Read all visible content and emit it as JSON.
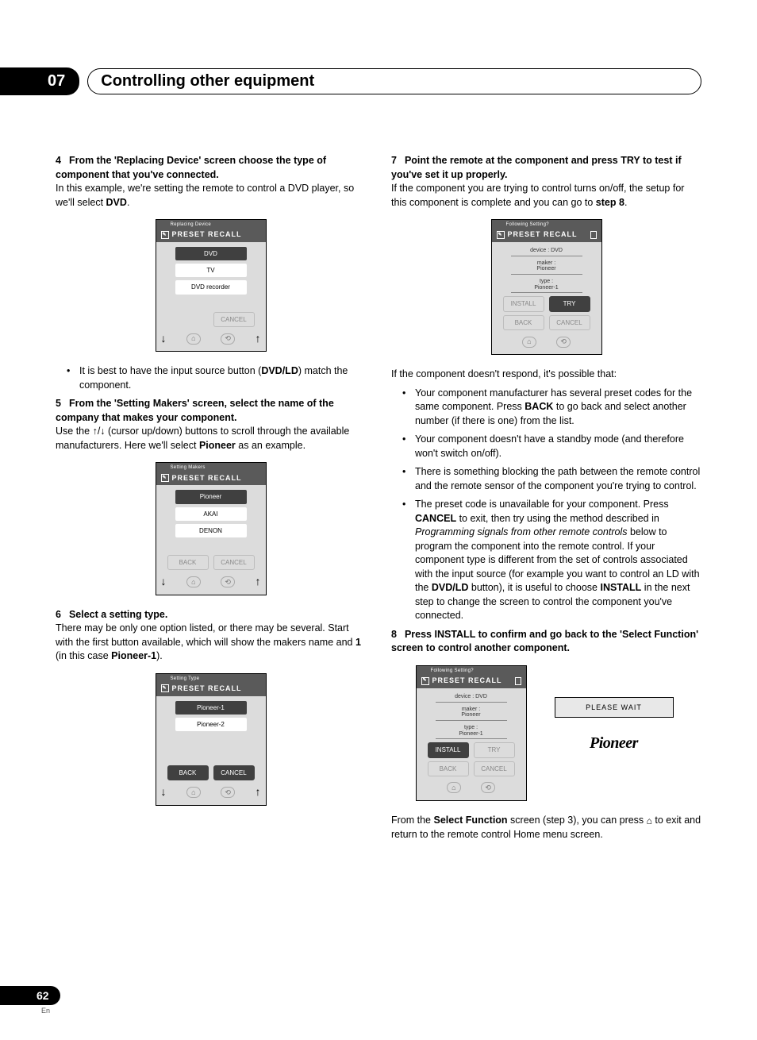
{
  "chapter": {
    "number": "07",
    "title": "Controlling other equipment"
  },
  "page": {
    "number": "62",
    "lang": "En"
  },
  "left": {
    "step4": {
      "num": "4",
      "heading": "From the 'Replacing Device' screen choose the type of component that you've connected.",
      "body_pre": "In this example, we're setting the remote to control a DVD player, so we'll select ",
      "body_bold": "DVD",
      "body_post": ".",
      "bullet_pre": "It is best to have the input source button (",
      "bullet_bold": "DVD/LD",
      "bullet_post": ") match the component."
    },
    "step5": {
      "num": "5",
      "heading": "From the 'Setting Makers' screen, select the name of the company that makes your component.",
      "body_pre": "Use the ",
      "body_mid": " (cursor up/down) buttons to scroll through the available manufacturers. Here we'll select ",
      "body_bold": "Pioneer",
      "body_post": " as an example."
    },
    "step6": {
      "num": "6",
      "heading": "Select a setting type.",
      "body_pre": "There may be only one option listed, or there may be several. Start with the first button available, which will show the makers name and ",
      "body_bold1": "1",
      "body_mid": " (in this case ",
      "body_bold2": "Pioneer-1",
      "body_post": ")."
    }
  },
  "right": {
    "step7": {
      "num": "7",
      "heading": "Point the remote at the component and press TRY to test if you've set it up properly.",
      "body_pre": "If the component you are trying to control turns on/off, the setup for this component is complete and you can go to ",
      "body_bold": "step 8",
      "body_post": ".",
      "after": "If the component doesn't respond, it's possible that:",
      "b1_pre": "Your component manufacturer has several preset codes for the same component. Press ",
      "b1_bold": "BACK",
      "b1_post": " to go back and select another number (if there is one) from the list.",
      "b2": "Your component doesn't have a standby mode (and therefore won't switch on/off).",
      "b3": "There is something blocking the path between the remote control and the remote sensor of the component you're trying to control.",
      "b4_pre": "The preset code is unavailable for your component. Press ",
      "b4_bold1": "CANCEL",
      "b4_mid1": " to exit, then try using the method described in ",
      "b4_italic": "Programming signals from other remote controls",
      "b4_mid2": " below to program the component into the remote control. If your component type is different from the set of controls associated with the input source (for example you want to control an LD with the ",
      "b4_bold2": "DVD/LD",
      "b4_mid3": " button), it is useful to choose ",
      "b4_bold3": "INSTALL",
      "b4_post": " in the next step to change the screen to control the component you've connected."
    },
    "step8": {
      "num": "8",
      "heading": "Press INSTALL to confirm and go back to the 'Select Function' screen to control another component.",
      "after_pre": "From the ",
      "after_bold": "Select Function",
      "after_mid": " screen (step 3), you can press ",
      "after_post": " to exit and return to the remote control Home menu screen."
    }
  },
  "screens": {
    "header_label": "PRESET RECALL",
    "replacing": {
      "title": "Replacing Device",
      "items": [
        "DVD",
        "TV",
        "DVD recorder"
      ],
      "cancel": "CANCEL"
    },
    "makers": {
      "title": "Setting Makers",
      "items": [
        "Pioneer",
        "AKAI",
        "DENON"
      ],
      "back": "BACK",
      "cancel": "CANCEL"
    },
    "types": {
      "title": "Setting Type",
      "items": [
        "Pioneer-1",
        "Pioneer-2"
      ],
      "back": "BACK",
      "cancel": "CANCEL"
    },
    "following": {
      "title": "Following Setting?",
      "info_device": "device : DVD",
      "info_maker_l1": "maker :",
      "info_maker_l2": "Pioneer",
      "info_type_l1": "type :",
      "info_type_l2": "Pioneer-1",
      "install": "INSTALL",
      "try": "TRY",
      "back": "BACK",
      "cancel": "CANCEL"
    },
    "wait": {
      "label": "PLEASE WAIT",
      "logo": "Pioneer"
    }
  }
}
